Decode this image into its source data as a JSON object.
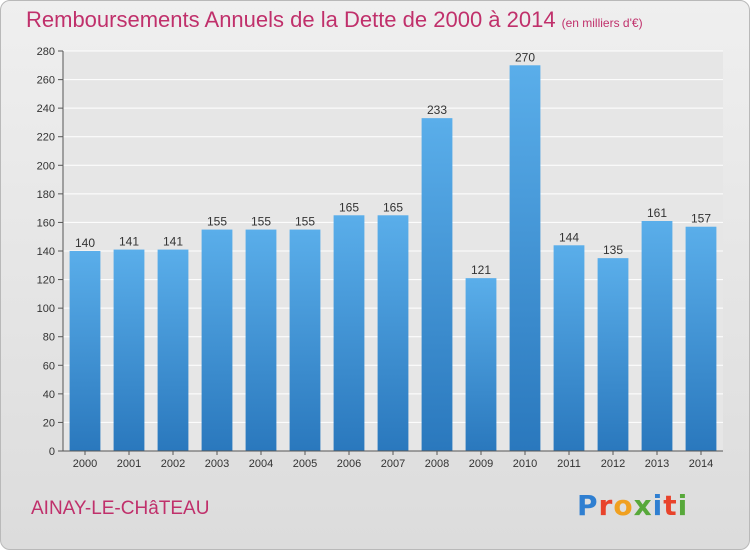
{
  "header": {
    "title": "Remboursements Annuels de la Dette de 2000 à 2014",
    "unit": "(en milliers d'€)"
  },
  "commune": "AINAY-LE-CHâTEAU",
  "logo": {
    "letters": [
      "P",
      "r",
      "o",
      "x",
      "i",
      "t",
      "i"
    ],
    "colors": [
      "#2f7fd1",
      "#e8432b",
      "#f0a020",
      "#57a83a",
      "#2f7fd1",
      "#e8432b",
      "#57a83a"
    ]
  },
  "chart_data": {
    "type": "bar",
    "categories": [
      "2000",
      "2001",
      "2002",
      "2003",
      "2004",
      "2005",
      "2006",
      "2007",
      "2008",
      "2009",
      "2010",
      "2011",
      "2012",
      "2013",
      "2014"
    ],
    "values": [
      140,
      141,
      141,
      155,
      155,
      155,
      165,
      165,
      233,
      121,
      270,
      144,
      135,
      161,
      157
    ],
    "ylim": [
      0,
      280
    ],
    "yticks": [
      0,
      20,
      40,
      60,
      80,
      100,
      120,
      140,
      160,
      180,
      200,
      220,
      240,
      260,
      280
    ],
    "grid": true,
    "bar_color_top": "#5aaeea",
    "bar_color_bottom": "#2a78bd"
  }
}
